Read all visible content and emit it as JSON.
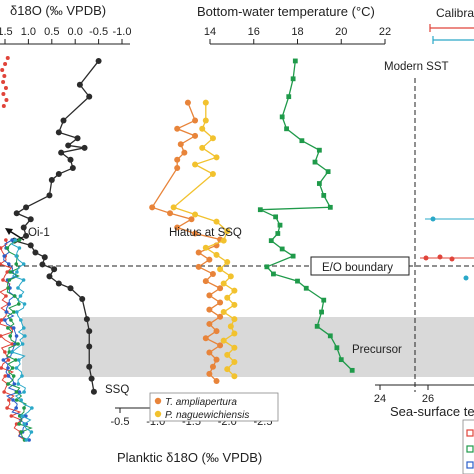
{
  "chart_data": {
    "type": "line",
    "title": "",
    "axes": {
      "top_left": {
        "label": "δ18O (‰ VPDB)",
        "ticks": [
          "1.5",
          "1.0",
          "0.5",
          "0.0",
          "-0.5",
          "-1.0"
        ],
        "range": [
          1.5,
          -1.0
        ]
      },
      "top_right": {
        "label": "Bottom-water temperature (°C)",
        "ticks": [
          "14",
          "16",
          "18",
          "20",
          "22"
        ],
        "range": [
          14,
          22
        ]
      },
      "bottom": {
        "label": "Planktic δ18O (‰ VPDB)",
        "ticks": [
          "-0.5",
          "-1.0",
          "-1.5",
          "-2.0",
          "-2.5"
        ],
        "range": [
          -0.5,
          -2.5
        ]
      },
      "sst": {
        "label": "Sea-surface temperature",
        "ticks": [
          "24",
          "26"
        ],
        "range": [
          24,
          26
        ]
      }
    },
    "depth_axis": {
      "label": "",
      "range": [
        0,
        100
      ],
      "direction": "down"
    },
    "series": [
      {
        "name": "",
        "color": "#2b2b2b",
        "axis": "top_left",
        "points": [
          [
            -0.5,
            5
          ],
          [
            -0.1,
            25
          ],
          [
            -0.3,
            35
          ],
          [
            0.25,
            55
          ],
          [
            0.35,
            65
          ],
          [
            -0.05,
            70
          ],
          [
            0.15,
            76
          ],
          [
            -0.2,
            78
          ],
          [
            0.3,
            82
          ],
          [
            0.1,
            88
          ],
          [
            0.05,
            95
          ],
          [
            0.35,
            100
          ],
          [
            0.5,
            105
          ],
          [
            0.55,
            118
          ],
          [
            1.05,
            128
          ],
          [
            1.25,
            133
          ],
          [
            0.95,
            138
          ],
          [
            1.1,
            145
          ],
          [
            1.05,
            152
          ],
          [
            1.3,
            156
          ],
          [
            0.95,
            160
          ],
          [
            0.85,
            166
          ],
          [
            0.65,
            170
          ],
          [
            0.7,
            176
          ],
          [
            0.45,
            180
          ],
          [
            0.55,
            186
          ],
          [
            0.35,
            192
          ],
          [
            0.1,
            196
          ],
          [
            -0.15,
            205
          ],
          [
            -0.25,
            222
          ],
          [
            -0.3,
            232
          ],
          [
            -0.3,
            245
          ],
          [
            -0.3,
            262
          ],
          [
            -0.35,
            272
          ],
          [
            -0.4,
            283
          ]
        ]
      },
      {
        "name": "T. ampliapertura",
        "color": "#e8843a",
        "axis": "bottom",
        "points": [
          [
            -1.45,
            40
          ],
          [
            -1.55,
            55
          ],
          [
            -1.3,
            62
          ],
          [
            -1.55,
            68
          ],
          [
            -1.35,
            75
          ],
          [
            -1.4,
            82
          ],
          [
            -1.3,
            88
          ],
          [
            -1.3,
            95
          ],
          [
            -0.95,
            128
          ],
          [
            -1.2,
            133
          ],
          [
            -1.5,
            138
          ],
          [
            -1.3,
            145
          ],
          [
            -1.55,
            150
          ],
          [
            -1.9,
            155
          ],
          [
            -1.85,
            160
          ],
          [
            -1.6,
            166
          ],
          [
            -1.75,
            172
          ],
          [
            -1.6,
            178
          ],
          [
            -1.8,
            184
          ],
          [
            -1.7,
            190
          ],
          [
            -1.9,
            196
          ],
          [
            -1.75,
            202
          ],
          [
            -1.9,
            208
          ],
          [
            -1.75,
            214
          ],
          [
            -1.9,
            220
          ],
          [
            -1.75,
            226
          ],
          [
            -1.85,
            232
          ],
          [
            -1.7,
            238
          ],
          [
            -1.9,
            244
          ],
          [
            -1.75,
            250
          ],
          [
            -1.85,
            256
          ],
          [
            -1.8,
            262
          ],
          [
            -1.75,
            268
          ],
          [
            -1.85,
            274
          ]
        ]
      },
      {
        "name": "P. naguewichiensis",
        "color": "#f2c22e",
        "axis": "bottom",
        "points": [
          [
            -1.7,
            40
          ],
          [
            -1.7,
            55
          ],
          [
            -1.65,
            62
          ],
          [
            -1.8,
            70
          ],
          [
            -1.65,
            78
          ],
          [
            -1.85,
            86
          ],
          [
            -1.55,
            92
          ],
          [
            -1.8,
            100
          ],
          [
            -1.25,
            128
          ],
          [
            -1.55,
            134
          ],
          [
            -1.85,
            140
          ],
          [
            -2.0,
            148
          ],
          [
            -1.95,
            156
          ],
          [
            -1.7,
            162
          ],
          [
            -1.85,
            168
          ],
          [
            -2.0,
            174
          ],
          [
            -1.9,
            180
          ],
          [
            -2.05,
            186
          ],
          [
            -1.95,
            192
          ],
          [
            -2.1,
            198
          ],
          [
            -2.0,
            204
          ],
          [
            -2.1,
            210
          ],
          [
            -1.95,
            216
          ],
          [
            -2.1,
            222
          ],
          [
            -2.05,
            228
          ],
          [
            -2.1,
            234
          ],
          [
            -1.95,
            240
          ],
          [
            -2.1,
            246
          ],
          [
            -2.0,
            252
          ],
          [
            -2.1,
            258
          ],
          [
            -2.0,
            264
          ],
          [
            -2.1,
            270
          ]
        ]
      },
      {
        "name": "",
        "color": "#1f9a4a",
        "axis": "top_right",
        "points": [
          [
            17.9,
            5
          ],
          [
            17.8,
            20
          ],
          [
            17.6,
            35
          ],
          [
            17.3,
            52
          ],
          [
            17.5,
            62
          ],
          [
            18.2,
            72
          ],
          [
            19.0,
            80
          ],
          [
            18.8,
            90
          ],
          [
            19.4,
            98
          ],
          [
            19.0,
            108
          ],
          [
            19.2,
            118
          ],
          [
            19.5,
            128
          ],
          [
            16.3,
            130
          ],
          [
            17.0,
            136
          ],
          [
            17.2,
            143
          ],
          [
            17.1,
            150
          ],
          [
            16.8,
            156
          ],
          [
            17.3,
            163
          ],
          [
            17.8,
            169
          ],
          [
            16.6,
            178
          ],
          [
            16.9,
            184
          ],
          [
            18.0,
            190
          ],
          [
            18.4,
            196
          ],
          [
            19.2,
            206
          ],
          [
            19.1,
            216
          ],
          [
            18.9,
            228
          ],
          [
            19.5,
            236
          ],
          [
            19.8,
            246
          ],
          [
            20.0,
            256
          ],
          [
            20.5,
            265
          ]
        ]
      }
    ],
    "annotations": {
      "modern_sst": "Modern SST",
      "oi1": "Oi-1",
      "hiatus": "Hiatus at SSQ",
      "eo_boundary": "E/O boundary",
      "precursor": "Precursor",
      "ssq": "SSQ",
      "calibration": "Calibra"
    },
    "legend": [
      {
        "label": "T. ampliapertura",
        "color": "#e8843a"
      },
      {
        "label": "P. naguewichiensis",
        "color": "#f2c22e"
      }
    ]
  }
}
